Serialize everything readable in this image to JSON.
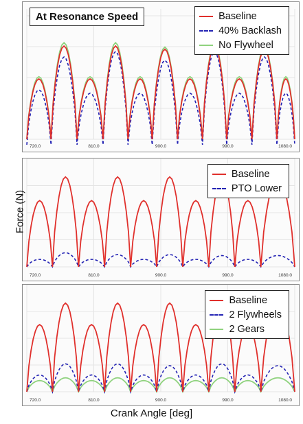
{
  "ylabel": "Force (N)",
  "xlabel": "Crank Angle [deg]",
  "colors": {
    "baseline": "#e0302c",
    "dashed": "#2323b4",
    "green": "#8fd27e"
  },
  "chart_data": [
    {
      "type": "line",
      "title": "At Resonance Speed",
      "xlim": [
        720,
        1080
      ],
      "xticks": [
        "720.0",
        "810.0",
        "900.0",
        "990.0",
        "1080.0"
      ],
      "legend_position": "top-right",
      "series": [
        {
          "name": "Baseline",
          "style": "solid",
          "color": "#e0302c",
          "peaks_x": [
            735,
            770,
            805,
            840,
            872,
            905,
            940,
            972,
            1005,
            1040,
            1072
          ],
          "peaks_y": [
            0.55,
            0.85,
            0.55,
            0.85,
            0.55,
            0.82,
            0.55,
            0.85,
            0.55,
            0.82,
            0.55
          ],
          "valley_y": 0.0
        },
        {
          "name": "40% Backlash",
          "style": "dashed",
          "color": "#2323b4",
          "peaks_x": [
            735,
            770,
            805,
            840,
            872,
            905,
            940,
            972,
            1005,
            1040,
            1072
          ],
          "peaks_y": [
            0.45,
            0.75,
            0.42,
            0.8,
            0.42,
            0.72,
            0.42,
            0.8,
            0.42,
            0.75,
            0.42
          ],
          "valley_y": -0.05
        },
        {
          "name": "No Flywheel",
          "style": "solid",
          "color": "#8fd27e",
          "peaks_x": [
            735,
            770,
            805,
            840,
            872,
            905,
            940,
            972,
            1005,
            1040,
            1072
          ],
          "peaks_y": [
            0.57,
            0.88,
            0.57,
            0.88,
            0.57,
            0.84,
            0.57,
            0.87,
            0.57,
            0.84,
            0.57
          ],
          "valley_y": 0.0
        }
      ]
    },
    {
      "type": "line",
      "title": "",
      "xlim": [
        720,
        1080
      ],
      "xticks": [
        "720.0",
        "810.0",
        "900.0",
        "990.0",
        "1080.0"
      ],
      "legend_position": "top-right",
      "series": [
        {
          "name": "Baseline",
          "style": "solid",
          "color": "#e0302c",
          "peaks_x": [
            737,
            772,
            807,
            842,
            877,
            912,
            947,
            982,
            1017,
            1052
          ],
          "peaks_y": [
            0.7,
            0.95,
            0.7,
            0.95,
            0.7,
            0.95,
            0.7,
            0.95,
            0.7,
            0.95
          ],
          "valley_y": 0.0
        },
        {
          "name": "PTO Lower",
          "style": "dashed",
          "color": "#2323b4",
          "peaks_x": [
            737,
            772,
            807,
            842,
            877,
            912,
            947,
            982,
            1017,
            1052
          ],
          "peaks_y": [
            0.08,
            0.15,
            0.08,
            0.13,
            0.08,
            0.13,
            0.08,
            0.12,
            0.08,
            0.12
          ],
          "valley_y": 0.0
        }
      ]
    },
    {
      "type": "line",
      "title": "",
      "xlim": [
        720,
        1080
      ],
      "xticks": [
        "720.0",
        "810.0",
        "900.0",
        "990.0",
        "1080.0"
      ],
      "legend_position": "top-right",
      "series": [
        {
          "name": "Baseline",
          "style": "solid",
          "color": "#e0302c",
          "peaks_x": [
            737,
            772,
            807,
            842,
            877,
            912,
            947,
            982,
            1017,
            1052
          ],
          "peaks_y": [
            0.72,
            0.95,
            0.72,
            0.95,
            0.72,
            0.95,
            0.72,
            0.95,
            0.72,
            0.95
          ],
          "valley_y": 0.0
        },
        {
          "name": "2 Flywheels",
          "style": "dashed",
          "color": "#2323b4",
          "peaks_x": [
            737,
            772,
            807,
            842,
            877,
            912,
            947,
            982,
            1017,
            1052
          ],
          "peaks_y": [
            0.18,
            0.3,
            0.18,
            0.3,
            0.18,
            0.28,
            0.18,
            0.3,
            0.18,
            0.28
          ],
          "valley_y": 0.0
        },
        {
          "name": "2 Gears",
          "style": "solid",
          "color": "#8fd27e",
          "peaks_x": [
            737,
            772,
            807,
            842,
            877,
            912,
            947,
            982,
            1017,
            1052
          ],
          "peaks_y": [
            0.12,
            0.15,
            0.12,
            0.15,
            0.12,
            0.15,
            0.12,
            0.15,
            0.12,
            0.15
          ],
          "valley_y": 0.0
        }
      ]
    }
  ]
}
